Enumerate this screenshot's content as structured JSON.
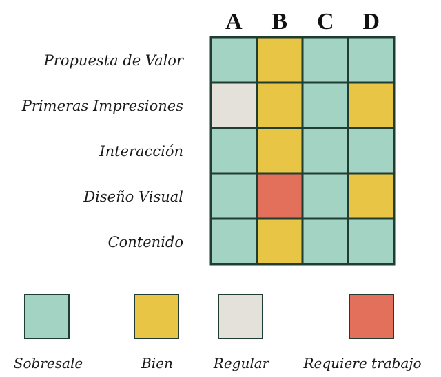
{
  "chart_data": {
    "type": "heatmap",
    "columns": [
      "A",
      "B",
      "C",
      "D"
    ],
    "rows": [
      "Propuesta de Valor",
      "Primeras Impresiones",
      "Interacción",
      "Diseño Visual",
      "Contenido"
    ],
    "values": [
      [
        "Sobresale",
        "Bien",
        "Sobresale",
        "Sobresale"
      ],
      [
        "Regular",
        "Bien",
        "Sobresale",
        "Bien"
      ],
      [
        "Sobresale",
        "Bien",
        "Sobresale",
        "Sobresale"
      ],
      [
        "Sobresale",
        "Requiere trabajo",
        "Sobresale",
        "Bien"
      ],
      [
        "Sobresale",
        "Bien",
        "Sobresale",
        "Sobresale"
      ]
    ],
    "legend": [
      {
        "label": "Sobresale",
        "color": "#a3d4c3"
      },
      {
        "label": "Bien",
        "color": "#e9c546"
      },
      {
        "label": "Regular",
        "color": "#e3e1da"
      },
      {
        "label": "Requiere trabajo",
        "color": "#e2705a"
      }
    ],
    "grid_line_color": "#1f3d30",
    "legend_position": "bottom"
  }
}
